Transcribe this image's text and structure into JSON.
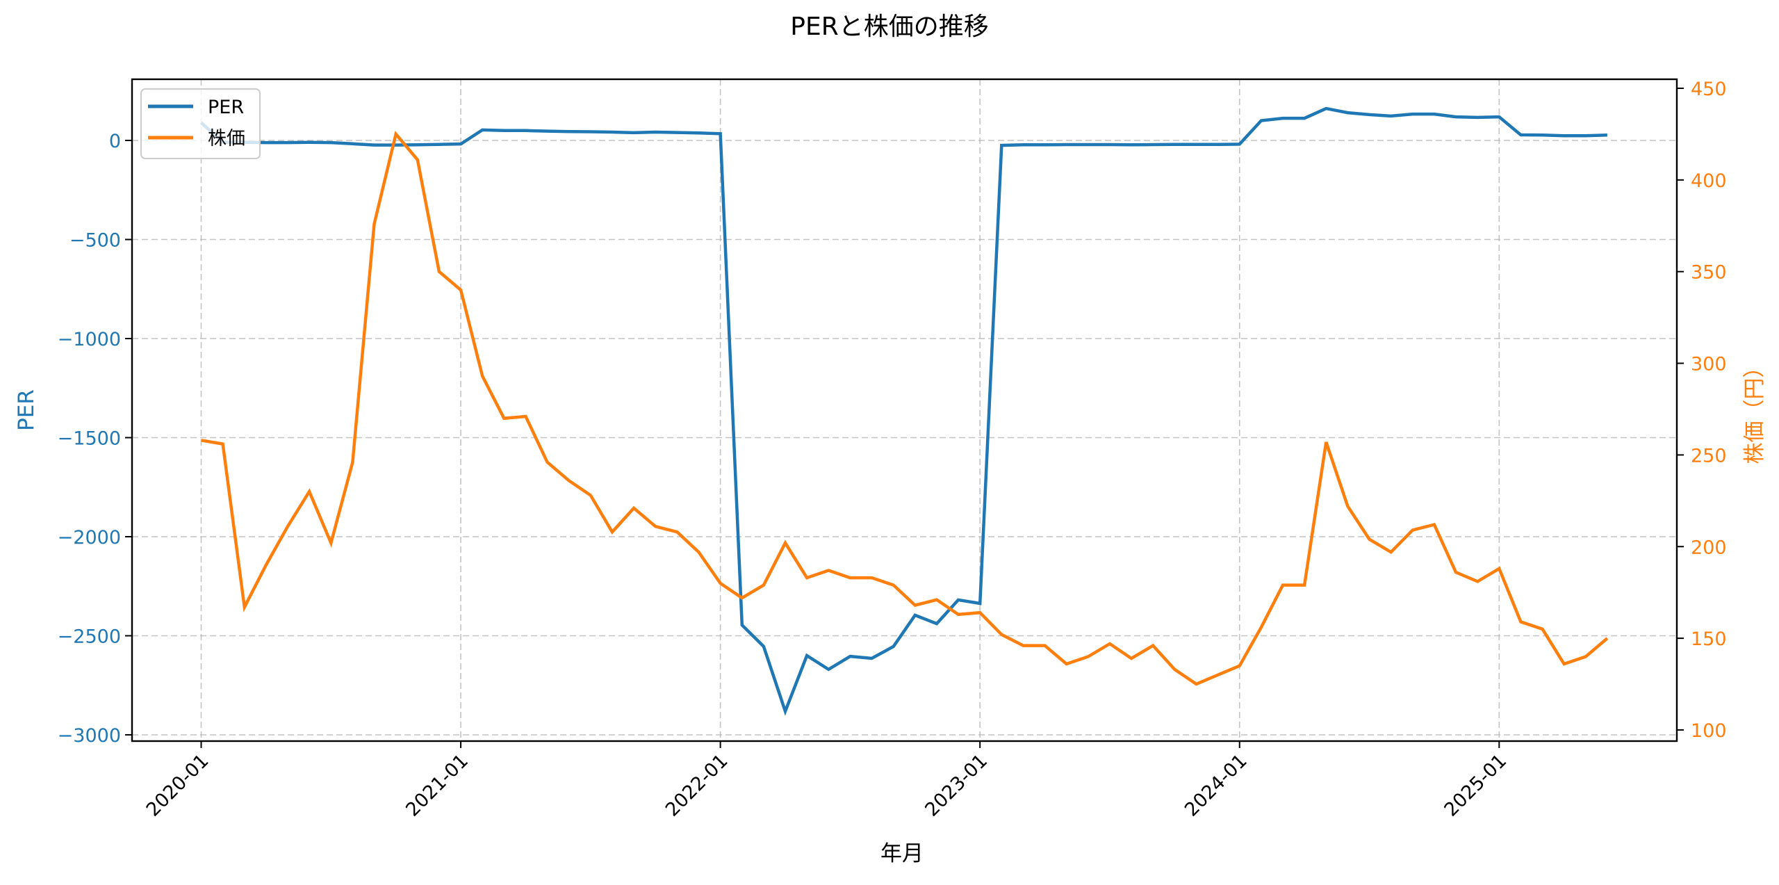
{
  "chart_data": {
    "type": "line",
    "title": "PERと株価の推移",
    "xlabel": "年月",
    "ylabel": "PER",
    "ylabel_right": "株価（円）",
    "grid": true,
    "legend_position": "upper left",
    "x_tick_labels": [
      "2020-01",
      "2021-01",
      "2022-01",
      "2023-01",
      "2024-01",
      "2025-01"
    ],
    "y_left_ticks": [
      0,
      -500,
      -1000,
      -1500,
      -2000,
      -2500,
      -3000
    ],
    "y_left_range": [
      -3030,
      310
    ],
    "y_right_ticks": [
      100,
      150,
      200,
      250,
      300,
      350,
      400,
      450
    ],
    "y_right_range": [
      95,
      455
    ],
    "x": [
      "2020-01",
      "2020-02",
      "2020-03",
      "2020-04",
      "2020-05",
      "2020-06",
      "2020-07",
      "2020-08",
      "2020-09",
      "2020-10",
      "2020-11",
      "2020-12",
      "2021-01",
      "2021-02",
      "2021-03",
      "2021-04",
      "2021-05",
      "2021-06",
      "2021-07",
      "2021-08",
      "2021-09",
      "2021-10",
      "2021-11",
      "2021-12",
      "2022-01",
      "2022-02",
      "2022-03",
      "2022-04",
      "2022-05",
      "2022-06",
      "2022-07",
      "2022-08",
      "2022-09",
      "2022-10",
      "2022-11",
      "2022-12",
      "2023-01",
      "2023-02",
      "2023-03",
      "2023-04",
      "2023-05",
      "2023-06",
      "2023-07",
      "2023-08",
      "2023-09",
      "2023-10",
      "2023-11",
      "2023-12",
      "2024-01",
      "2024-02",
      "2024-03",
      "2024-04",
      "2024-05",
      "2024-06",
      "2024-07",
      "2024-08",
      "2024-09",
      "2024-10",
      "2024-11",
      "2024-12",
      "2025-01",
      "2025-02",
      "2025-03",
      "2025-04",
      "2025-05",
      "2025-06"
    ],
    "series": [
      {
        "name": "PER",
        "axis": "left",
        "color": "#1f77b4",
        "values": [
          90,
          -10,
          -10,
          -11,
          -11,
          -10,
          -11,
          -17,
          -23,
          -23,
          -22,
          -20,
          -18,
          53,
          50,
          50,
          47,
          45,
          44,
          42,
          39,
          42,
          40,
          38,
          34,
          -2446,
          -2554,
          -2881,
          -2600,
          -2670,
          -2604,
          -2614,
          -2554,
          -2396,
          -2439,
          -2319,
          -2337,
          -25,
          -22,
          -22,
          -21,
          -21,
          -21,
          -22,
          -21,
          -20,
          -20,
          -20,
          -19,
          100,
          112,
          112,
          161,
          140,
          130,
          123,
          133,
          133,
          119,
          116,
          119,
          28,
          27,
          24,
          24,
          27
        ]
      },
      {
        "name": "株価",
        "axis": "right",
        "color": "#ff7f0e",
        "values": [
          258,
          256,
          167,
          190,
          211,
          230,
          202,
          246,
          376,
          425,
          411,
          350,
          340,
          293,
          270,
          271,
          246,
          236,
          228,
          208,
          221,
          211,
          208,
          197,
          180,
          172,
          179,
          202,
          183,
          187,
          183,
          183,
          179,
          168,
          171,
          163,
          164,
          152,
          146,
          146,
          136,
          140,
          147,
          139,
          146,
          133,
          125,
          130,
          135,
          156,
          179,
          179,
          257,
          222,
          204,
          197,
          209,
          212,
          186,
          181,
          188,
          159,
          155,
          136,
          140,
          150
        ]
      }
    ]
  },
  "legend": {
    "items": [
      {
        "label": "PER",
        "color": "#1f77b4"
      },
      {
        "label": "株価",
        "color": "#ff7f0e"
      }
    ]
  },
  "colors": {
    "per": "#1f77b4",
    "price": "#ff7f0e",
    "grid": "#b0b0b0",
    "axis": "#000000"
  }
}
